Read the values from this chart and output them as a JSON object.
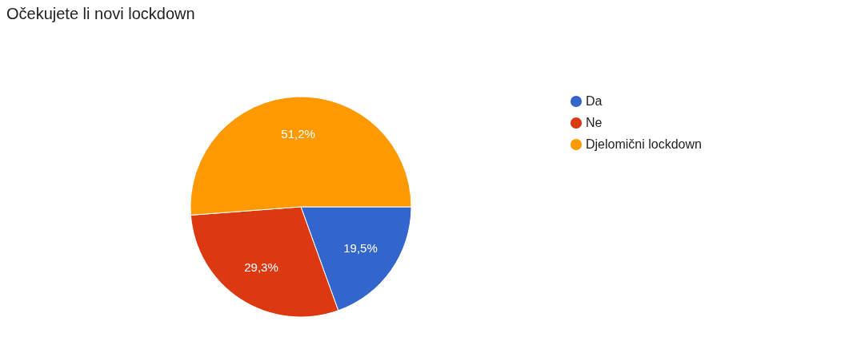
{
  "chart_data": {
    "type": "pie",
    "title": "Očekujete li novi lockdown",
    "categories": [
      "Da",
      "Ne",
      "Djelomični lockdown"
    ],
    "values": [
      19.5,
      29.3,
      51.2
    ],
    "colors": [
      "#3366cc",
      "#dc3912",
      "#ff9900"
    ],
    "value_labels": [
      "19,5%",
      "29,3%",
      "51,2%"
    ],
    "legend": "right"
  }
}
